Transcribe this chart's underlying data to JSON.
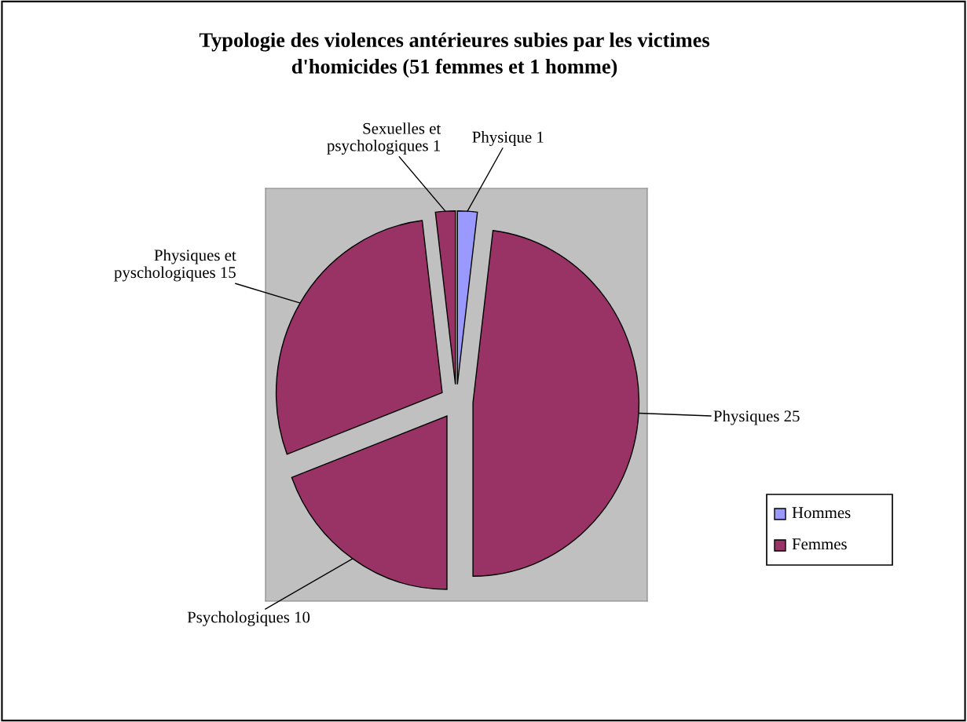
{
  "chart_data": {
    "type": "pie",
    "title": "Typologie des violences antérieures subies par les victimes\nd'homicides (51 femmes et 1 homme)",
    "categories": [
      "Physique 1",
      "Physiques 25",
      "Psychologiques 10",
      "Physiques et\npyschologiques 15",
      "Sexuelles et\npsychologiques 1"
    ],
    "values": [
      1,
      25,
      10,
      15,
      1
    ],
    "colors": [
      "#9999ff",
      "#993366",
      "#993366",
      "#993366",
      "#993366"
    ],
    "annotations": [
      "Hommes",
      "Femmes"
    ]
  }
}
